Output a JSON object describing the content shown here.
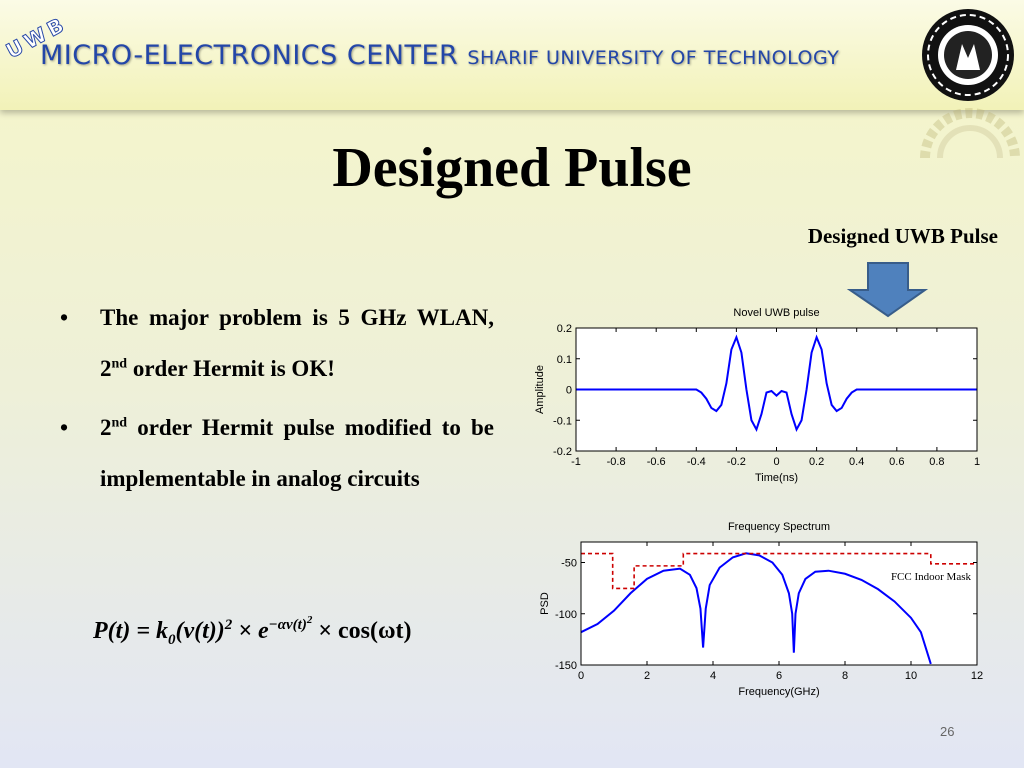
{
  "header": {
    "badge": "UWB",
    "center": "MICRO-ELECTRONICS CENTER",
    "university": "SHARIF UNIVERSITY OF TECHNOLOGY"
  },
  "title": "Designed Pulse",
  "callout": "Designed UWB Pulse",
  "bullets": [
    {
      "before": "The major problem is 5 GHz WLAN, 2",
      "sup": "nd",
      "after": " order Hermit is OK!"
    },
    {
      "before": "2",
      "sup": "nd",
      "after": " order Hermit pulse modified to be implementable in analog circuits"
    }
  ],
  "formula": {
    "lhs": "P(t) = k",
    "k_sub": "0",
    "base": "(v(t))",
    "power": "2",
    "times": " × e",
    "exponent": "−αv(t)",
    "exponent_power": "2",
    "tail": " × cos(ωt)"
  },
  "slide_number": "26",
  "chart_data": [
    {
      "type": "line",
      "title": "Novel UWB pulse",
      "x_label": "Time(ns)",
      "y_label": "Amplitude",
      "x": [
        -1,
        -0.9,
        -0.8,
        -0.7,
        -0.6,
        -0.5,
        -0.45,
        -0.4,
        -0.375,
        -0.35,
        -0.325,
        -0.3,
        -0.275,
        -0.25,
        -0.225,
        -0.2,
        -0.175,
        -0.15,
        -0.125,
        -0.1,
        -0.075,
        -0.05,
        -0.025,
        0,
        0.025,
        0.05,
        0.075,
        0.1,
        0.125,
        0.15,
        0.175,
        0.2,
        0.225,
        0.25,
        0.275,
        0.3,
        0.325,
        0.35,
        0.375,
        0.4,
        0.45,
        0.5,
        0.6,
        0.7,
        0.8,
        0.9,
        1
      ],
      "series": [
        {
          "color": "#0000ff",
          "values": [
            0,
            0,
            0,
            0,
            0,
            0,
            0,
            0,
            -0.01,
            -0.03,
            -0.06,
            -0.07,
            -0.05,
            0.02,
            0.13,
            0.17,
            0.12,
            0,
            -0.1,
            -0.13,
            -0.08,
            -0.01,
            -0.005,
            -0.02,
            -0.005,
            -0.01,
            -0.08,
            -0.13,
            -0.1,
            0,
            0.12,
            0.17,
            0.13,
            0.02,
            -0.05,
            -0.07,
            -0.06,
            -0.03,
            -0.01,
            0,
            0,
            0,
            0,
            0,
            0,
            0,
            0
          ]
        }
      ],
      "xlim": [
        -1,
        1
      ],
      "ylim": [
        -0.2,
        0.2
      ],
      "xticks": [
        -1,
        -0.8,
        -0.6,
        -0.4,
        -0.2,
        0,
        0.2,
        0.4,
        0.6,
        0.8,
        1
      ],
      "yticks": [
        -0.2,
        -0.1,
        0,
        0.1,
        0.2
      ],
      "grid": false
    },
    {
      "type": "line",
      "title": "Frequency Spectrum",
      "x_label": "Frequency(GHz)",
      "y_label": "PSD",
      "series": [
        {
          "color": "#0000ff",
          "line_style": "solid",
          "x": [
            0,
            0.5,
            1,
            1.5,
            2,
            2.5,
            3,
            3.3,
            3.5,
            3.62,
            3.7,
            3.78,
            3.9,
            4.2,
            4.6,
            5,
            5.4,
            5.8,
            6.1,
            6.3,
            6.4,
            6.45,
            6.5,
            6.6,
            6.8,
            7.1,
            7.5,
            8,
            8.5,
            9,
            9.5,
            10,
            10.3,
            10.6
          ],
          "values": [
            -118,
            -110,
            -97,
            -80,
            -66,
            -58,
            -56,
            -62,
            -75,
            -95,
            -133,
            -95,
            -72,
            -55,
            -45,
            -41,
            -43,
            -50,
            -62,
            -80,
            -100,
            -138,
            -100,
            -80,
            -66,
            -59,
            -58,
            -61,
            -67,
            -76,
            -88,
            -104,
            -118,
            -149
          ]
        },
        {
          "color": "#cc0000",
          "line_style": "dashed",
          "x": [
            0,
            0.96,
            0.96,
            1.61,
            1.61,
            3.1,
            3.1,
            10.6,
            10.6,
            12
          ],
          "values": [
            -41.3,
            -41.3,
            -75.3,
            -75.3,
            -53.3,
            -53.3,
            -41.3,
            -41.3,
            -51.3,
            -51.3
          ]
        }
      ],
      "annotation": "FCC Indoor Mask",
      "xlim": [
        0,
        12
      ],
      "ylim": [
        -150,
        -30
      ],
      "xticks": [
        0,
        2,
        4,
        6,
        8,
        10,
        12
      ],
      "yticks": [
        -150,
        -100,
        -50
      ],
      "grid": false
    }
  ]
}
